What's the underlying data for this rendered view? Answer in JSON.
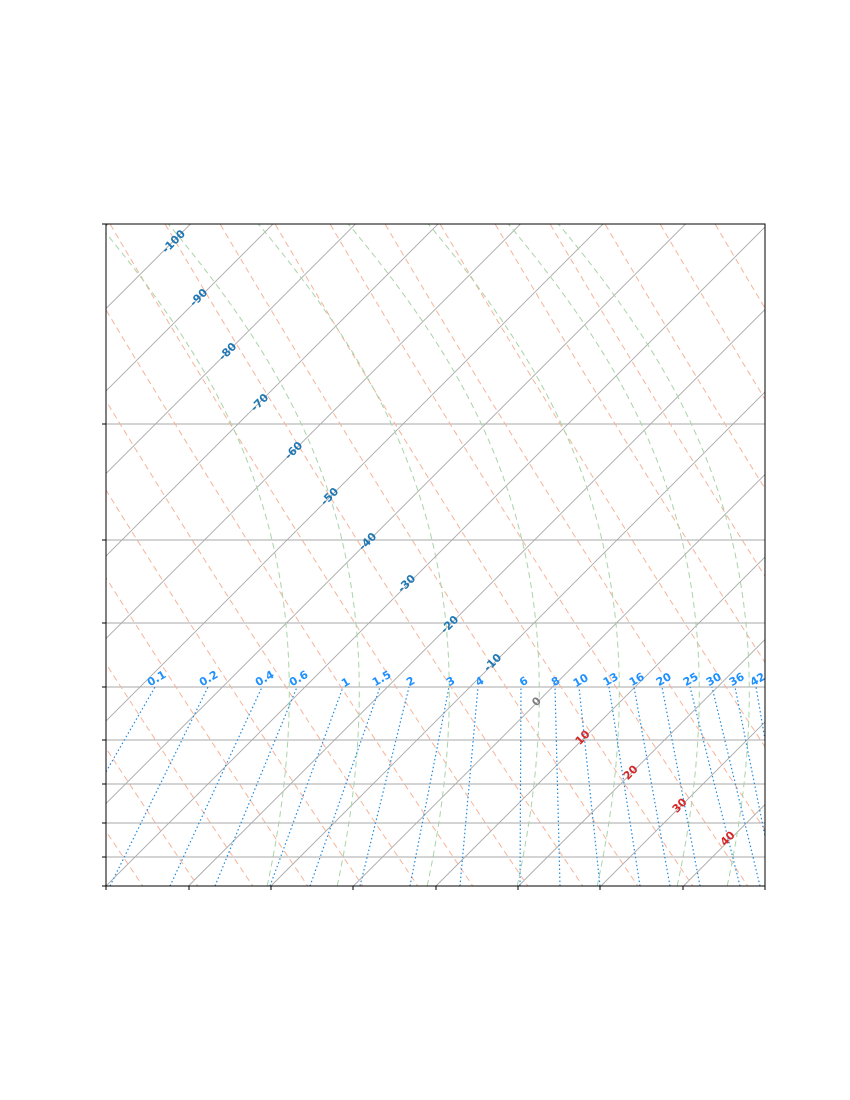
{
  "chart_data": {
    "type": "skew-t",
    "title": "",
    "xlabel": "",
    "ylabel": "",
    "grid": "on",
    "legend": "none",
    "isotherm_labels": [
      "-100",
      "-90",
      "-80",
      "-70",
      "-60",
      "-50",
      "-40",
      "-30",
      "-20",
      "-10",
      "0",
      "10",
      "20",
      "30",
      "40"
    ],
    "isotherm_values": [
      -100,
      -90,
      -80,
      -70,
      -60,
      -50,
      -40,
      -30,
      -20,
      -10,
      0,
      10,
      20,
      30,
      40
    ],
    "mixing_ratio_labels": [
      "0.1",
      "0.2",
      "0.4",
      "0.6",
      "1",
      "1.5",
      "2",
      "3",
      "4",
      "6",
      "8",
      "10",
      "13",
      "16",
      "20",
      "25",
      "30",
      "36",
      "42"
    ],
    "line_series": [
      {
        "kind": "isotherms",
        "style": "solid",
        "color": "#a8a8a8"
      },
      {
        "kind": "isobars",
        "style": "solid",
        "color": "#a8a8a8"
      },
      {
        "kind": "dry adiabats",
        "style": "dashed",
        "color": "#f5b49b"
      },
      {
        "kind": "moist adiabats",
        "style": "dashed",
        "color": "#a9d4a9"
      },
      {
        "kind": "mixing ratio lines",
        "style": "dotted",
        "color": "#1f8be0"
      }
    ],
    "colors": {
      "cold_label": "#1f77b4",
      "zero_label": "#7f7f7f",
      "warm_label": "#d62728",
      "mixing_label": "#1e90ff"
    }
  }
}
